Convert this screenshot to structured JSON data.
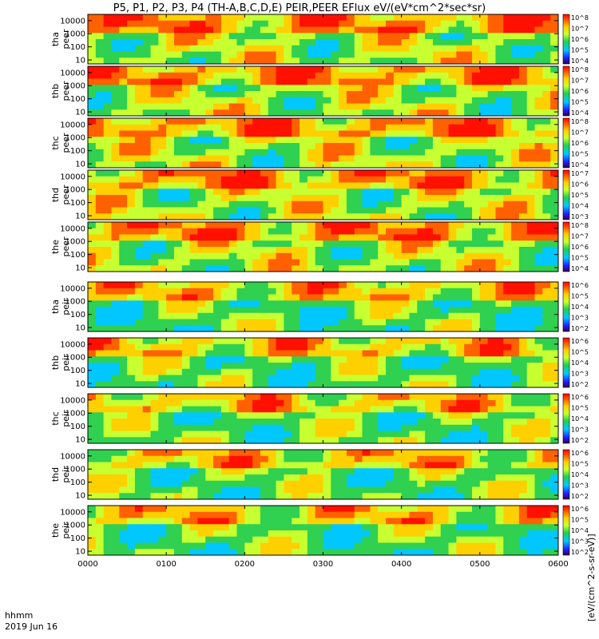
{
  "chart_data": {
    "type": "heatmap",
    "title": "P5, P1, P2, P3, P4 (TH-A,B,C,D,E) PEIR,PEER EFlux eV/(eV*cm^2*sec*sr)",
    "date_label": "2019 Jun 16",
    "time_label": "hhmm",
    "x_ticks": [
      "0000",
      "0100",
      "0200",
      "0300",
      "0400",
      "0500",
      "0600"
    ],
    "y_ticks": [
      "10",
      "100",
      "1000",
      "10000"
    ],
    "ylim": [
      5,
      30000
    ],
    "yscale": "log",
    "colorbar_label": "[eV/(cm^2-s-sr-eV)]",
    "panels": [
      {
        "probe": "tha",
        "species": "peer",
        "colorbar_ticks": [
          "10^8",
          "10^7",
          "10^6",
          "10^5",
          "10^4"
        ]
      },
      {
        "probe": "thb",
        "species": "peer",
        "colorbar_ticks": [
          "10^8",
          "10^7",
          "10^6",
          "10^5",
          "10^4"
        ]
      },
      {
        "probe": "thc",
        "species": "peer",
        "colorbar_ticks": [
          "10^8",
          "10^7",
          "10^6",
          "10^5",
          "10^4"
        ]
      },
      {
        "probe": "thd",
        "species": "peer",
        "colorbar_ticks": [
          "10^7",
          "10^6",
          "10^5",
          "10^4",
          "10^3"
        ]
      },
      {
        "probe": "the",
        "species": "peer",
        "colorbar_ticks": [
          "10^8",
          "10^7",
          "10^6",
          "10^5",
          "10^4"
        ]
      },
      {
        "probe": "tha",
        "species": "peir",
        "colorbar_ticks": [
          "10^6",
          "10^5",
          "10^4",
          "10^3",
          "10^2"
        ]
      },
      {
        "probe": "thb",
        "species": "peir",
        "colorbar_ticks": [
          "10^6",
          "10^5",
          "10^4",
          "10^3",
          "10^2"
        ]
      },
      {
        "probe": "thc",
        "species": "peir",
        "colorbar_ticks": [
          "10^6",
          "10^5",
          "10^4",
          "10^3",
          "10^2"
        ]
      },
      {
        "probe": "thd",
        "species": "peir",
        "colorbar_ticks": [
          "10^6",
          "10^5",
          "10^4",
          "10^3",
          "10^2"
        ]
      },
      {
        "probe": "the",
        "species": "peir",
        "colorbar_ticks": [
          "10^6",
          "10^5",
          "10^4",
          "10^3",
          "10^2"
        ]
      }
    ]
  }
}
